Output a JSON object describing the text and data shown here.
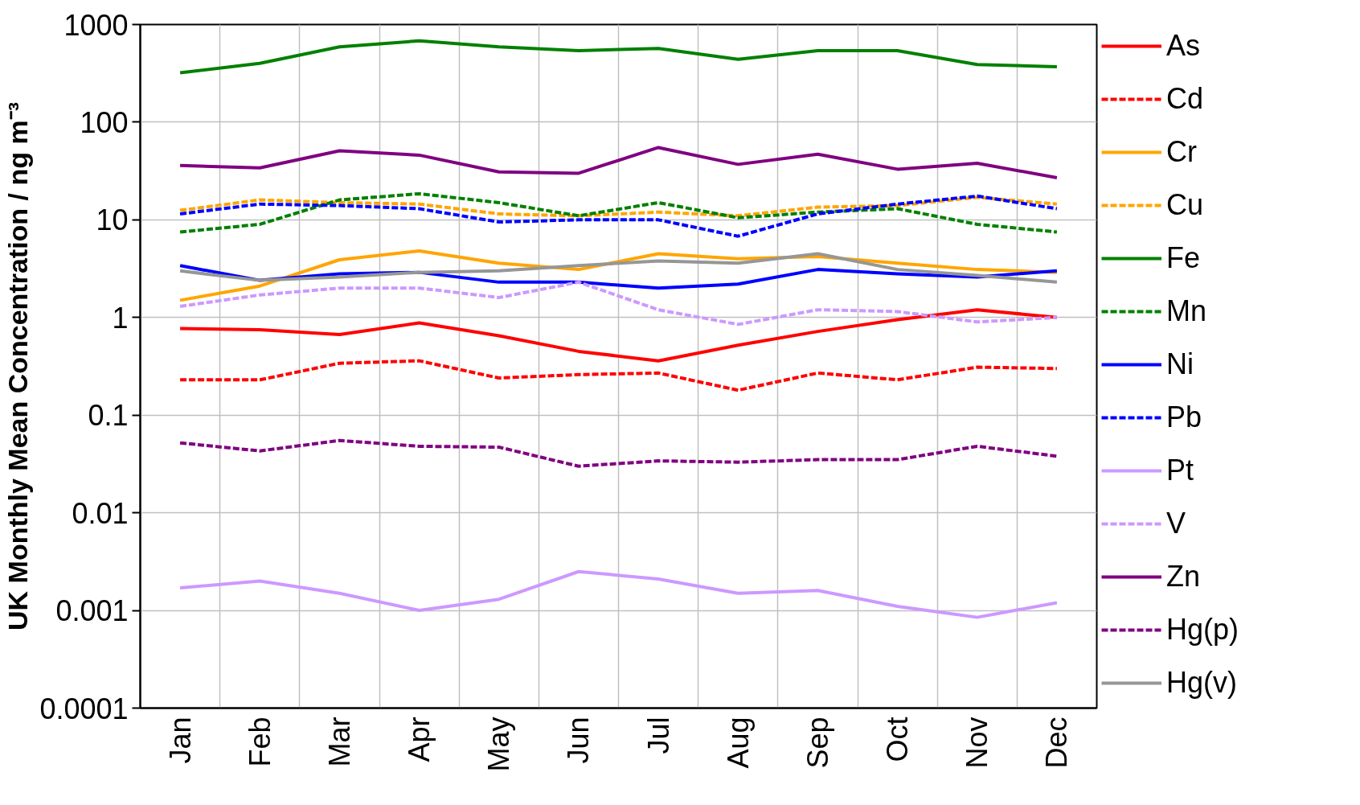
{
  "chart_data": {
    "type": "line",
    "ylabel": "UK Monthly Mean Concentration / ng m⁻³",
    "categories": [
      "Jan",
      "Feb",
      "Mar",
      "Apr",
      "May",
      "Jun",
      "Jul",
      "Aug",
      "Sep",
      "Oct",
      "Nov",
      "Dec"
    ],
    "log": "y",
    "ylim": [
      0.0001,
      1000
    ],
    "yticks": [
      0.0001,
      0.001,
      0.01,
      0.1,
      1,
      10,
      100,
      1000
    ],
    "grid": true,
    "legend": "right",
    "marker": "none",
    "series": [
      {
        "name": "As",
        "color": "#ff0000",
        "line_style": "solid",
        "values": [
          0.77,
          0.75,
          0.67,
          0.88,
          0.65,
          0.45,
          0.36,
          0.52,
          0.72,
          0.95,
          1.2,
          1.0
        ]
      },
      {
        "name": "Cd",
        "color": "#ff0000",
        "line_style": "dashed",
        "values": [
          0.23,
          0.23,
          0.34,
          0.36,
          0.24,
          0.26,
          0.27,
          0.18,
          0.27,
          0.23,
          0.31,
          0.3
        ]
      },
      {
        "name": "Cr",
        "color": "#ffa500",
        "line_style": "solid",
        "values": [
          1.5,
          2.1,
          3.9,
          4.8,
          3.6,
          3.1,
          4.5,
          4.0,
          4.2,
          3.6,
          3.1,
          2.9
        ]
      },
      {
        "name": "Cu",
        "color": "#ffa500",
        "line_style": "dashed",
        "values": [
          12.5,
          16,
          15,
          14.5,
          11.5,
          11,
          12,
          11,
          13.5,
          14,
          17,
          14.5
        ]
      },
      {
        "name": "Fe",
        "color": "#008000",
        "line_style": "solid",
        "values": [
          320,
          400,
          590,
          680,
          590,
          540,
          570,
          440,
          540,
          540,
          390,
          370
        ]
      },
      {
        "name": "Mn",
        "color": "#008000",
        "line_style": "dashed",
        "values": [
          7.5,
          9,
          16,
          18.5,
          15,
          11,
          15,
          10.5,
          12,
          13,
          9,
          7.5
        ]
      },
      {
        "name": "Ni",
        "color": "#0000ff",
        "line_style": "solid",
        "values": [
          3.4,
          2.4,
          2.8,
          2.9,
          2.3,
          2.3,
          2.0,
          2.2,
          3.1,
          2.8,
          2.6,
          3.0
        ]
      },
      {
        "name": "Pb",
        "color": "#0000ff",
        "line_style": "dashed",
        "values": [
          11.5,
          14.5,
          14,
          13,
          9.5,
          10,
          10,
          6.8,
          11.5,
          14.5,
          17.5,
          13
        ]
      },
      {
        "name": "Pt",
        "color": "#cc99ff",
        "line_style": "solid",
        "values": [
          0.0017,
          0.002,
          0.0015,
          0.001,
          0.0013,
          0.0025,
          0.0021,
          0.0015,
          0.0016,
          0.0011,
          0.00085,
          0.0012
        ]
      },
      {
        "name": "V",
        "color": "#cc99ff",
        "line_style": "dashed",
        "values": [
          1.3,
          1.7,
          2.0,
          2.0,
          1.6,
          2.3,
          1.2,
          0.85,
          1.2,
          1.15,
          0.9,
          1.0
        ]
      },
      {
        "name": "Zn",
        "color": "#800080",
        "line_style": "solid",
        "values": [
          36,
          34,
          51,
          46,
          31,
          30,
          55,
          37,
          47,
          33,
          38,
          27
        ]
      },
      {
        "name": "Hg(p)",
        "color": "#800080",
        "line_style": "dashed",
        "values": [
          0.052,
          0.043,
          0.055,
          0.048,
          0.047,
          0.03,
          0.034,
          0.033,
          0.035,
          0.035,
          0.048,
          0.038
        ]
      },
      {
        "name": "Hg(v)",
        "color": "#969696",
        "line_style": "solid",
        "values": [
          3.0,
          2.4,
          2.6,
          2.9,
          3.0,
          3.4,
          3.8,
          3.6,
          4.5,
          3.1,
          2.7,
          2.3
        ]
      }
    ]
  }
}
